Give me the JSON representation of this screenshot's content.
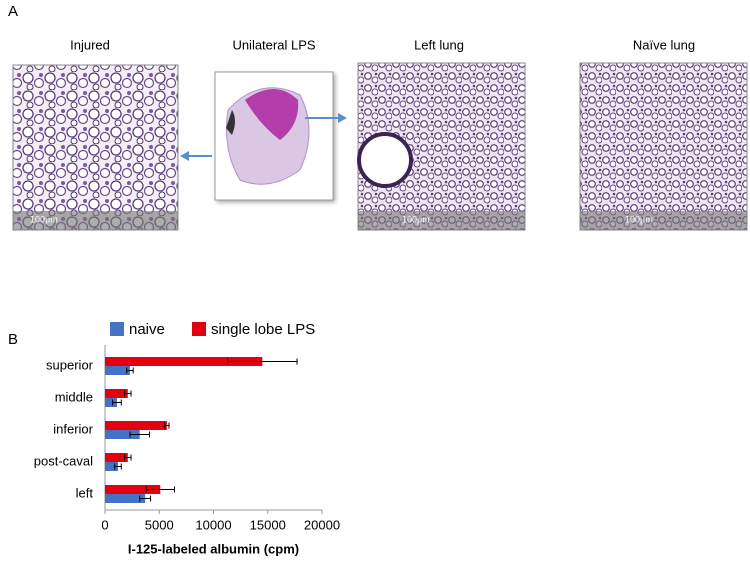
{
  "panel_a": {
    "label": "A",
    "images": [
      {
        "title": "Injured",
        "scale": "100μm"
      },
      {
        "title": "Unilateral LPS"
      },
      {
        "title": "Left lung",
        "scale": "100μm"
      },
      {
        "title": "Naïve lung",
        "scale": "100μm"
      }
    ]
  },
  "panel_b": {
    "label": "B"
  },
  "chart_data": {
    "type": "bar",
    "orientation": "horizontal",
    "categories": [
      "superior",
      "middle",
      "inferior",
      "post-caval",
      "left"
    ],
    "series": [
      {
        "name": "naive",
        "color": "#4472c4",
        "values": [
          2300,
          1100,
          3200,
          1200,
          3700
        ],
        "errors": [
          300,
          400,
          900,
          300,
          500
        ]
      },
      {
        "name": "single lobe LPS",
        "color": "#e3000f",
        "values": [
          14500,
          2100,
          5700,
          2100,
          5100
        ],
        "errors": [
          3200,
          300,
          200,
          300,
          1300
        ]
      }
    ],
    "xlim": [
      0,
      20000
    ],
    "xticks": [
      0,
      5000,
      10000,
      15000,
      20000
    ],
    "xlabel": "I-125-labeled albumin (cpm)",
    "legend": "top",
    "grid": false
  }
}
